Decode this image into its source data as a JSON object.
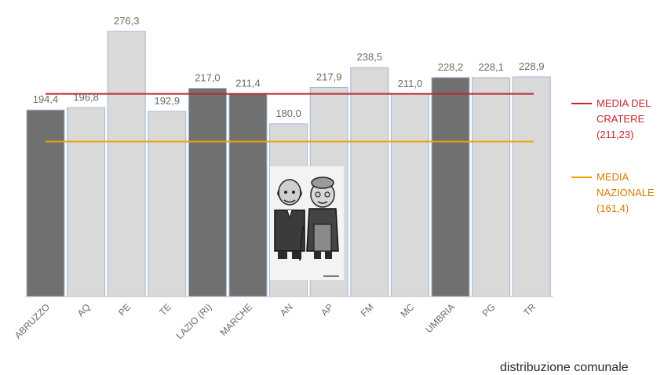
{
  "chart_data": {
    "type": "bar",
    "categories": [
      "ABRUZZO",
      "AQ",
      "PE",
      "TE",
      "LAZIO (RI)",
      "MARCHE",
      "AN",
      "AP",
      "FM",
      "MC",
      "UMBRIA",
      "PG",
      "TR"
    ],
    "values": [
      194.4,
      196.8,
      276.3,
      192.9,
      217.0,
      211.4,
      180.0,
      217.9,
      238.5,
      211.0,
      228.2,
      228.1,
      228.9
    ],
    "value_labels": [
      "194,4",
      "196,8",
      "276,3",
      "192,9",
      "217,0",
      "211,4",
      "180,0",
      "217,9",
      "238,5",
      "211,0",
      "228,2",
      "228,1",
      "228,9"
    ],
    "region_bars": [
      "ABRUZZO",
      "LAZIO (RI)",
      "MARCHE",
      "UMBRIA"
    ],
    "ylim": [
      0,
      280
    ],
    "grid": false,
    "reference_lines": [
      {
        "label": "MEDIA DEL\nCRATERE\n(211,23)",
        "value": 211.23,
        "color": "#c0282d"
      },
      {
        "label": "MEDIA\nNAZIONALE\n(161,4)",
        "value": 161.4,
        "color": "#e8a600"
      }
    ],
    "legend_position": "right",
    "colors": {
      "region": "#707070",
      "province": "#d9d9d9",
      "bar_border": "#9fb8d8"
    }
  },
  "footer": {
    "note": "distribuzione comunale"
  },
  "illustration": {
    "icon": "elderly-couple-icon"
  }
}
